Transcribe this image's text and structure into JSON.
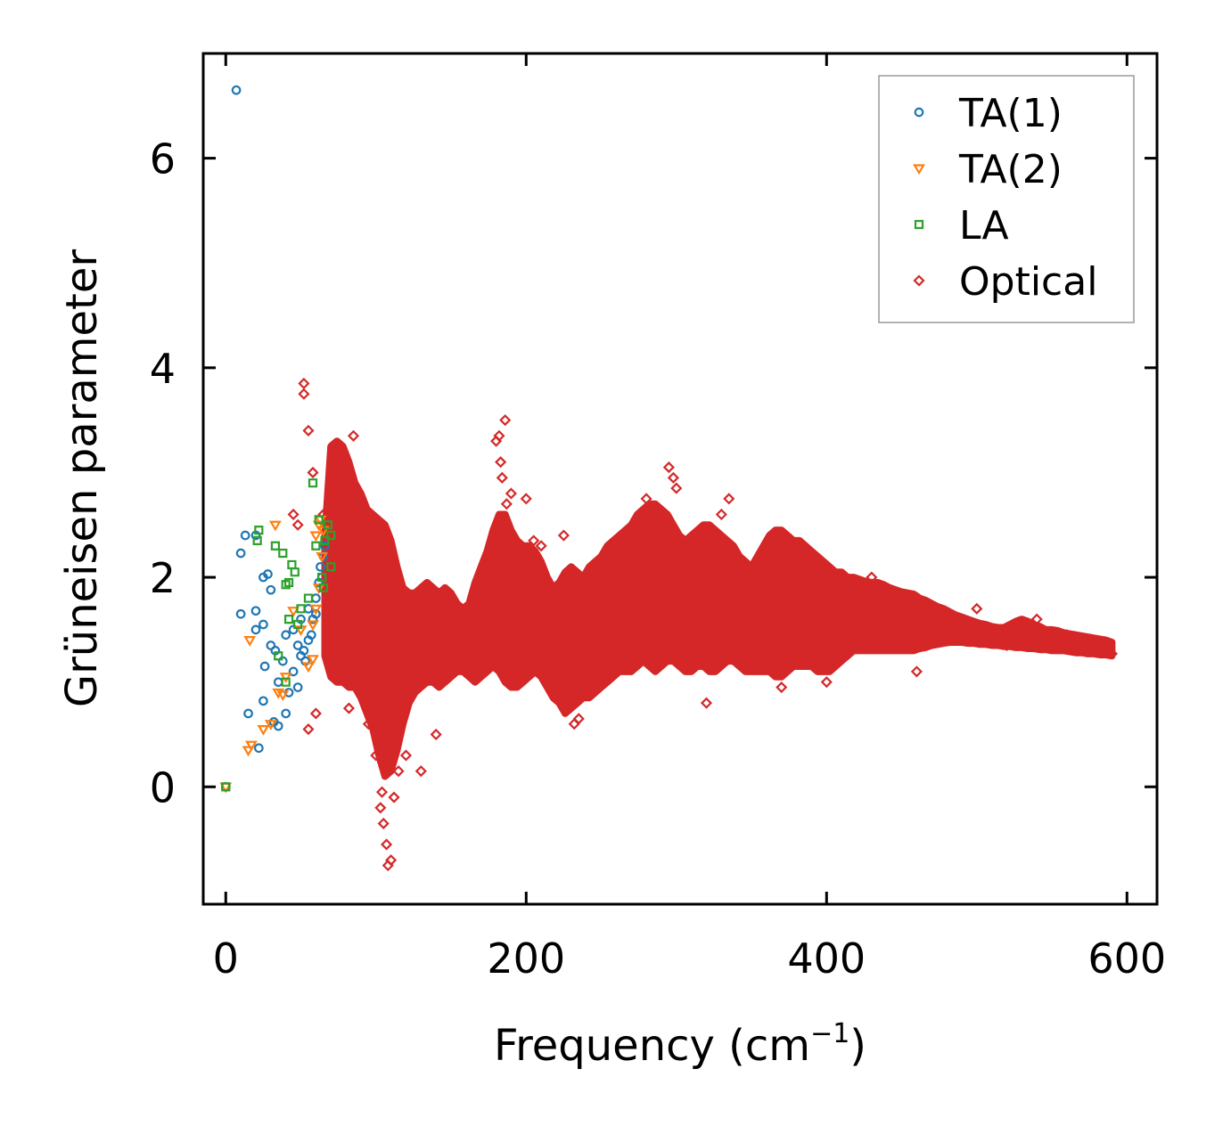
{
  "chart_data": {
    "type": "scatter",
    "xlabel": "Frequency (cm",
    "xlabel_sup": "−1",
    "xlabel_end": ")",
    "ylabel": "Grüneisen parameter",
    "xlim": [
      -15,
      620
    ],
    "ylim": [
      -1.12,
      7.0
    ],
    "xticks": [
      0,
      200,
      400,
      600
    ],
    "yticks": [
      0,
      2,
      4,
      6
    ],
    "xtick_labels": [
      "0",
      "200",
      "400",
      "600"
    ],
    "ytick_labels": [
      "0",
      "2",
      "4",
      "6"
    ],
    "grid": false,
    "legend_position": "top-right",
    "series": [
      {
        "name": "TA(1)",
        "marker": "circle",
        "color": "#1f77b4",
        "points": [
          [
            7,
            6.65
          ],
          [
            0,
            0
          ],
          [
            10,
            2.23
          ],
          [
            13,
            2.4
          ],
          [
            20,
            2.4
          ],
          [
            25,
            2.0
          ],
          [
            28,
            2.03
          ],
          [
            30,
            1.88
          ],
          [
            10,
            1.65
          ],
          [
            20,
            1.68
          ],
          [
            15,
            0.7
          ],
          [
            22,
            0.37
          ],
          [
            25,
            0.82
          ],
          [
            32,
            0.62
          ],
          [
            35,
            0.58
          ],
          [
            20,
            1.5
          ],
          [
            25,
            1.55
          ],
          [
            26,
            1.15
          ],
          [
            30,
            1.35
          ],
          [
            33,
            1.3
          ],
          [
            35,
            1.0
          ],
          [
            38,
            1.2
          ],
          [
            40,
            0.7
          ],
          [
            42,
            0.9
          ],
          [
            45,
            1.1
          ],
          [
            48,
            0.95
          ],
          [
            50,
            1.25
          ],
          [
            52,
            1.3
          ],
          [
            55,
            1.4
          ],
          [
            58,
            1.6
          ],
          [
            60,
            1.8
          ],
          [
            62,
            1.95
          ],
          [
            63,
            2.1
          ],
          [
            65,
            2.2
          ],
          [
            66,
            2.3
          ],
          [
            45,
            1.5
          ],
          [
            50,
            1.6
          ],
          [
            55,
            1.7
          ],
          [
            40,
            1.45
          ],
          [
            48,
            1.35
          ],
          [
            53,
            1.2
          ],
          [
            57,
            1.45
          ],
          [
            60,
            1.65
          ],
          [
            64,
            2.0
          ]
        ]
      },
      {
        "name": "TA(2)",
        "marker": "triangle-down",
        "color": "#ff7f0e",
        "points": [
          [
            0,
            0
          ],
          [
            15,
            0.35
          ],
          [
            17,
            0.4
          ],
          [
            16,
            1.4
          ],
          [
            25,
            0.55
          ],
          [
            30,
            0.6
          ],
          [
            33,
            2.5
          ],
          [
            35,
            0.9
          ],
          [
            38,
            0.88
          ],
          [
            40,
            1.05
          ],
          [
            45,
            1.68
          ],
          [
            50,
            1.5
          ],
          [
            55,
            1.15
          ],
          [
            58,
            1.22
          ],
          [
            60,
            2.4
          ],
          [
            62,
            2.5
          ],
          [
            63,
            2.55
          ],
          [
            65,
            2.45
          ],
          [
            64,
            2.2
          ],
          [
            62,
            1.9
          ],
          [
            60,
            1.7
          ],
          [
            58,
            1.55
          ]
        ]
      },
      {
        "name": "LA",
        "marker": "square",
        "color": "#2ca02c",
        "points": [
          [
            0,
            0
          ],
          [
            22,
            2.45
          ],
          [
            21,
            2.35
          ],
          [
            33,
            2.3
          ],
          [
            38,
            2.23
          ],
          [
            40,
            1.93
          ],
          [
            42,
            1.95
          ],
          [
            44,
            2.12
          ],
          [
            46,
            2.05
          ],
          [
            42,
            1.6
          ],
          [
            35,
            1.25
          ],
          [
            40,
            1.0
          ],
          [
            58,
            2.9
          ],
          [
            60,
            2.3
          ],
          [
            62,
            2.55
          ],
          [
            68,
            2.5
          ],
          [
            70,
            2.4
          ],
          [
            70,
            2.1
          ],
          [
            66,
            2.35
          ],
          [
            64,
            2.0
          ],
          [
            55,
            1.8
          ],
          [
            50,
            1.7
          ],
          [
            48,
            1.55
          ],
          [
            65,
            1.9
          ]
        ]
      },
      {
        "name": "Optical",
        "marker": "diamond",
        "color": "#d62728",
        "points": [
          [
            52,
            3.85
          ],
          [
            52,
            3.75
          ],
          [
            55,
            3.4
          ],
          [
            58,
            3.0
          ],
          [
            65,
            2.6
          ],
          [
            45,
            2.6
          ],
          [
            48,
            2.5
          ],
          [
            55,
            0.55
          ],
          [
            60,
            0.7
          ],
          [
            82,
            0.75
          ],
          [
            85,
            3.35
          ],
          [
            95,
            0.6
          ],
          [
            100,
            0.3
          ],
          [
            103,
            -0.2
          ],
          [
            105,
            -0.35
          ],
          [
            107,
            -0.55
          ],
          [
            108,
            -0.75
          ],
          [
            110,
            -0.7
          ],
          [
            112,
            -0.1
          ],
          [
            104,
            -0.05
          ],
          [
            115,
            0.15
          ],
          [
            120,
            0.3
          ],
          [
            130,
            0.15
          ],
          [
            140,
            0.5
          ],
          [
            180,
            3.3
          ],
          [
            182,
            3.35
          ],
          [
            186,
            3.5
          ],
          [
            183,
            3.1
          ],
          [
            184,
            2.95
          ],
          [
            190,
            2.8
          ],
          [
            187,
            2.7
          ],
          [
            200,
            2.75
          ],
          [
            205,
            2.35
          ],
          [
            210,
            2.3
          ],
          [
            225,
            2.4
          ],
          [
            232,
            0.6
          ],
          [
            235,
            0.65
          ],
          [
            280,
            2.75
          ],
          [
            295,
            3.05
          ],
          [
            298,
            2.95
          ],
          [
            300,
            2.85
          ],
          [
            335,
            2.75
          ],
          [
            330,
            2.6
          ],
          [
            320,
            0.8
          ],
          [
            370,
            0.95
          ],
          [
            400,
            1.0
          ],
          [
            430,
            2.0
          ],
          [
            460,
            1.1
          ],
          [
            480,
            1.45
          ],
          [
            500,
            1.7
          ],
          [
            520,
            1.35
          ],
          [
            540,
            1.6
          ],
          [
            560,
            1.45
          ],
          [
            580,
            1.3
          ],
          [
            590,
            1.27
          ]
        ],
        "envelope": [
          [
            66,
            1.25,
            2.4
          ],
          [
            70,
            1.05,
            3.25
          ],
          [
            74,
            1.0,
            3.3
          ],
          [
            78,
            1.0,
            3.25
          ],
          [
            82,
            0.95,
            3.1
          ],
          [
            86,
            0.95,
            2.9
          ],
          [
            90,
            0.85,
            2.8
          ],
          [
            94,
            0.7,
            2.65
          ],
          [
            98,
            0.55,
            2.6
          ],
          [
            102,
            0.3,
            2.55
          ],
          [
            106,
            0.1,
            2.5
          ],
          [
            110,
            0.15,
            2.35
          ],
          [
            114,
            0.35,
            2.1
          ],
          [
            118,
            0.6,
            1.9
          ],
          [
            122,
            0.8,
            1.85
          ],
          [
            126,
            0.9,
            1.85
          ],
          [
            130,
            0.95,
            1.9
          ],
          [
            134,
            1.0,
            1.95
          ],
          [
            138,
            1.0,
            1.9
          ],
          [
            142,
            0.95,
            1.85
          ],
          [
            146,
            1.0,
            1.9
          ],
          [
            150,
            1.05,
            1.85
          ],
          [
            154,
            1.1,
            1.75
          ],
          [
            158,
            1.1,
            1.7
          ],
          [
            162,
            1.05,
            1.75
          ],
          [
            166,
            1.0,
            1.95
          ],
          [
            170,
            1.05,
            2.1
          ],
          [
            174,
            1.1,
            2.25
          ],
          [
            178,
            1.15,
            2.45
          ],
          [
            182,
            1.1,
            2.6
          ],
          [
            186,
            1.0,
            2.6
          ],
          [
            190,
            0.95,
            2.45
          ],
          [
            194,
            0.95,
            2.35
          ],
          [
            198,
            1.0,
            2.3
          ],
          [
            202,
            1.05,
            2.3
          ],
          [
            206,
            1.1,
            2.25
          ],
          [
            210,
            1.05,
            2.15
          ],
          [
            214,
            0.95,
            2.0
          ],
          [
            218,
            0.85,
            1.9
          ],
          [
            222,
            0.8,
            1.95
          ],
          [
            226,
            0.7,
            2.05
          ],
          [
            230,
            0.75,
            2.1
          ],
          [
            234,
            0.8,
            2.05
          ],
          [
            238,
            0.85,
            2.0
          ],
          [
            242,
            0.85,
            2.1
          ],
          [
            246,
            0.9,
            2.15
          ],
          [
            250,
            0.95,
            2.2
          ],
          [
            254,
            1.0,
            2.3
          ],
          [
            258,
            1.05,
            2.35
          ],
          [
            262,
            1.1,
            2.4
          ],
          [
            266,
            1.1,
            2.45
          ],
          [
            270,
            1.1,
            2.5
          ],
          [
            274,
            1.15,
            2.6
          ],
          [
            278,
            1.2,
            2.65
          ],
          [
            282,
            1.15,
            2.7
          ],
          [
            286,
            1.1,
            2.7
          ],
          [
            290,
            1.15,
            2.65
          ],
          [
            294,
            1.2,
            2.6
          ],
          [
            298,
            1.2,
            2.5
          ],
          [
            302,
            1.15,
            2.4
          ],
          [
            306,
            1.1,
            2.35
          ],
          [
            310,
            1.1,
            2.4
          ],
          [
            314,
            1.15,
            2.45
          ],
          [
            318,
            1.15,
            2.5
          ],
          [
            322,
            1.1,
            2.5
          ],
          [
            326,
            1.1,
            2.45
          ],
          [
            330,
            1.15,
            2.4
          ],
          [
            334,
            1.2,
            2.35
          ],
          [
            338,
            1.2,
            2.3
          ],
          [
            342,
            1.15,
            2.2
          ],
          [
            346,
            1.1,
            2.15
          ],
          [
            350,
            1.1,
            2.1
          ],
          [
            354,
            1.1,
            2.2
          ],
          [
            358,
            1.1,
            2.3
          ],
          [
            362,
            1.1,
            2.4
          ],
          [
            366,
            1.05,
            2.45
          ],
          [
            370,
            1.05,
            2.45
          ],
          [
            374,
            1.1,
            2.4
          ],
          [
            378,
            1.15,
            2.35
          ],
          [
            382,
            1.15,
            2.35
          ],
          [
            386,
            1.15,
            2.3
          ],
          [
            390,
            1.15,
            2.25
          ],
          [
            394,
            1.1,
            2.2
          ],
          [
            398,
            1.1,
            2.15
          ],
          [
            402,
            1.1,
            2.1
          ],
          [
            406,
            1.15,
            2.05
          ],
          [
            410,
            1.2,
            2.05
          ],
          [
            414,
            1.25,
            2.0
          ],
          [
            418,
            1.3,
            2.0
          ],
          [
            422,
            1.3,
            1.98
          ],
          [
            426,
            1.3,
            1.96
          ],
          [
            430,
            1.3,
            1.95
          ],
          [
            434,
            1.3,
            1.95
          ],
          [
            438,
            1.3,
            1.93
          ],
          [
            442,
            1.3,
            1.9
          ],
          [
            446,
            1.3,
            1.88
          ],
          [
            450,
            1.3,
            1.86
          ],
          [
            454,
            1.3,
            1.85
          ],
          [
            458,
            1.3,
            1.84
          ],
          [
            462,
            1.32,
            1.8
          ],
          [
            466,
            1.33,
            1.78
          ],
          [
            470,
            1.35,
            1.75
          ],
          [
            474,
            1.36,
            1.72
          ],
          [
            478,
            1.37,
            1.7
          ],
          [
            482,
            1.38,
            1.67
          ],
          [
            486,
            1.38,
            1.64
          ],
          [
            490,
            1.38,
            1.62
          ],
          [
            494,
            1.37,
            1.6
          ],
          [
            498,
            1.37,
            1.58
          ],
          [
            502,
            1.36,
            1.56
          ],
          [
            506,
            1.36,
            1.55
          ],
          [
            510,
            1.35,
            1.53
          ],
          [
            514,
            1.35,
            1.52
          ],
          [
            518,
            1.34,
            1.52
          ],
          [
            522,
            1.34,
            1.55
          ],
          [
            526,
            1.33,
            1.58
          ],
          [
            530,
            1.33,
            1.6
          ],
          [
            534,
            1.32,
            1.58
          ],
          [
            538,
            1.32,
            1.55
          ],
          [
            542,
            1.31,
            1.53
          ],
          [
            546,
            1.31,
            1.5
          ],
          [
            550,
            1.3,
            1.5
          ],
          [
            554,
            1.3,
            1.49
          ],
          [
            558,
            1.3,
            1.47
          ],
          [
            562,
            1.29,
            1.46
          ],
          [
            566,
            1.28,
            1.45
          ],
          [
            570,
            1.28,
            1.44
          ],
          [
            574,
            1.27,
            1.43
          ],
          [
            578,
            1.27,
            1.42
          ],
          [
            582,
            1.26,
            1.41
          ],
          [
            586,
            1.26,
            1.4
          ],
          [
            590,
            1.25,
            1.38
          ]
        ]
      }
    ]
  }
}
